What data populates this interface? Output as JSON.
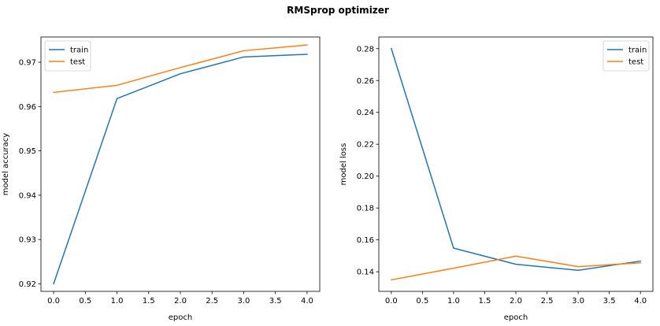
{
  "figure": {
    "title": "RMSprop optimizer"
  },
  "colors": {
    "train": "#1f77b4",
    "test": "#ff7f0e"
  },
  "chart_data": [
    {
      "type": "line",
      "xlabel": "epoch",
      "ylabel": "model accuracy",
      "x": [
        0,
        1,
        2,
        3,
        4
      ],
      "xlim": [
        -0.2,
        4.2
      ],
      "ylim": [
        0.9183,
        0.9757
      ],
      "xticks": [
        "0.0",
        "0.5",
        "1.0",
        "1.5",
        "2.0",
        "2.5",
        "3.0",
        "3.5",
        "4.0"
      ],
      "yticks": [
        "0.92",
        "0.93",
        "0.94",
        "0.95",
        "0.96",
        "0.97"
      ],
      "legend": "upper-left",
      "grid": false,
      "series": [
        {
          "name": "train",
          "values": [
            0.92,
            0.9618,
            0.9674,
            0.9712,
            0.9718
          ]
        },
        {
          "name": "test",
          "values": [
            0.9632,
            0.9648,
            0.9688,
            0.9726,
            0.9739
          ]
        }
      ]
    },
    {
      "type": "line",
      "xlabel": "epoch",
      "ylabel": "model loss",
      "x": [
        0,
        1,
        2,
        3,
        4
      ],
      "xlim": [
        -0.2,
        4.2
      ],
      "ylim": [
        0.1277,
        0.2873
      ],
      "xticks": [
        "0.0",
        "0.5",
        "1.0",
        "1.5",
        "2.0",
        "2.5",
        "3.0",
        "3.5",
        "4.0"
      ],
      "yticks": [
        "0.14",
        "0.16",
        "0.18",
        "0.20",
        "0.22",
        "0.24",
        "0.26",
        "0.28"
      ],
      "legend": "upper-right",
      "grid": false,
      "series": [
        {
          "name": "train",
          "values": [
            0.2801,
            0.1548,
            0.1447,
            0.1409,
            0.1467
          ]
        },
        {
          "name": "test",
          "values": [
            0.1349,
            0.1422,
            0.1498,
            0.1432,
            0.1456
          ]
        }
      ]
    }
  ]
}
